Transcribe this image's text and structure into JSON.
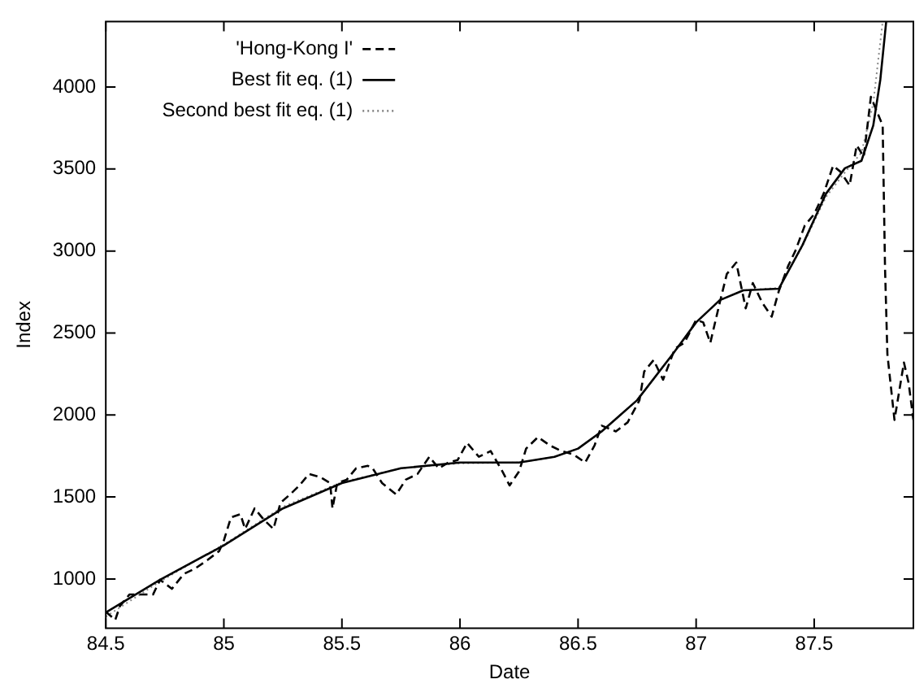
{
  "chart_data": {
    "type": "line",
    "xlabel": "Date",
    "ylabel": "Index",
    "xlim": [
      84.5,
      87.92
    ],
    "ylim": [
      700,
      4400
    ],
    "xticks": [
      84.5,
      85,
      85.5,
      86,
      86.5,
      87,
      87.5
    ],
    "yticks": [
      1000,
      1500,
      2000,
      2500,
      3000,
      3500,
      4000
    ],
    "grid": false,
    "legend": "top left",
    "marker": "none",
    "series": [
      {
        "name": "'Hong-Kong I'",
        "color": "#000000",
        "line_style": "dashed",
        "x": [
          84.5,
          84.54,
          84.56,
          84.6,
          84.64,
          84.7,
          84.73,
          84.78,
          84.83,
          84.88,
          84.93,
          84.98,
          85.0,
          85.03,
          85.07,
          85.09,
          85.13,
          85.17,
          85.21,
          85.24,
          85.28,
          85.32,
          85.36,
          85.41,
          85.45,
          85.46,
          85.48,
          85.52,
          85.56,
          85.61,
          85.63,
          85.67,
          85.73,
          85.77,
          85.82,
          85.87,
          85.91,
          85.95,
          85.99,
          86.03,
          86.08,
          86.13,
          86.18,
          86.21,
          86.25,
          86.28,
          86.33,
          86.38,
          86.43,
          86.48,
          86.53,
          86.57,
          86.6,
          86.66,
          86.71,
          86.76,
          86.78,
          86.82,
          86.86,
          86.91,
          86.95,
          87.0,
          87.03,
          87.06,
          87.1,
          87.13,
          87.17,
          87.21,
          87.24,
          87.28,
          87.32,
          87.35,
          87.39,
          87.42,
          87.46,
          87.5,
          87.54,
          87.58,
          87.61,
          87.65,
          87.68,
          87.71,
          87.74,
          87.76,
          87.79,
          87.8,
          87.81,
          87.84,
          87.88,
          87.9,
          87.92
        ],
        "values": [
          800,
          750,
          835,
          905,
          905,
          905,
          995,
          940,
          1030,
          1065,
          1115,
          1170,
          1235,
          1375,
          1395,
          1305,
          1430,
          1360,
          1305,
          1465,
          1515,
          1570,
          1640,
          1620,
          1585,
          1430,
          1585,
          1605,
          1675,
          1690,
          1675,
          1585,
          1515,
          1605,
          1640,
          1745,
          1675,
          1710,
          1725,
          1830,
          1745,
          1780,
          1655,
          1570,
          1655,
          1795,
          1865,
          1815,
          1780,
          1760,
          1710,
          1815,
          1935,
          1900,
          1955,
          2090,
          2265,
          2335,
          2215,
          2405,
          2440,
          2580,
          2565,
          2440,
          2685,
          2860,
          2930,
          2650,
          2805,
          2685,
          2600,
          2755,
          2910,
          3000,
          3155,
          3225,
          3350,
          3520,
          3485,
          3400,
          3645,
          3575,
          3940,
          3870,
          3765,
          2895,
          2370,
          1970,
          2320,
          2195,
          1970
        ]
      },
      {
        "name": "Best fit eq. (1)",
        "color": "#000000",
        "line_style": "solid",
        "x": [
          84.5,
          84.73,
          85.0,
          85.25,
          85.5,
          85.75,
          86.0,
          86.25,
          86.4,
          86.5,
          86.6,
          86.75,
          86.9,
          87.0,
          87.1,
          87.2,
          87.35,
          87.45,
          87.55,
          87.63,
          87.7,
          87.75,
          87.78,
          87.805
        ],
        "values": [
          795,
          995,
          1205,
          1430,
          1585,
          1675,
          1710,
          1710,
          1745,
          1795,
          1900,
          2090,
          2370,
          2565,
          2700,
          2760,
          2770,
          3035,
          3350,
          3505,
          3550,
          3765,
          4045,
          4400
        ]
      },
      {
        "name": "Second best fit eq. (1)",
        "color": "#888888",
        "line_style": "dotted",
        "x": [
          84.5,
          84.73,
          85.0,
          85.25,
          85.5,
          85.75,
          86.0,
          86.25,
          86.4,
          86.5,
          86.6,
          86.75,
          86.9,
          87.0,
          87.1,
          87.2,
          87.35,
          87.45,
          87.55,
          87.63,
          87.7,
          87.75,
          87.79
        ],
        "values": [
          770,
          985,
          1210,
          1440,
          1590,
          1675,
          1705,
          1710,
          1745,
          1795,
          1900,
          2090,
          2370,
          2565,
          2700,
          2760,
          2775,
          3030,
          3330,
          3480,
          3600,
          3900,
          4400
        ]
      }
    ]
  }
}
